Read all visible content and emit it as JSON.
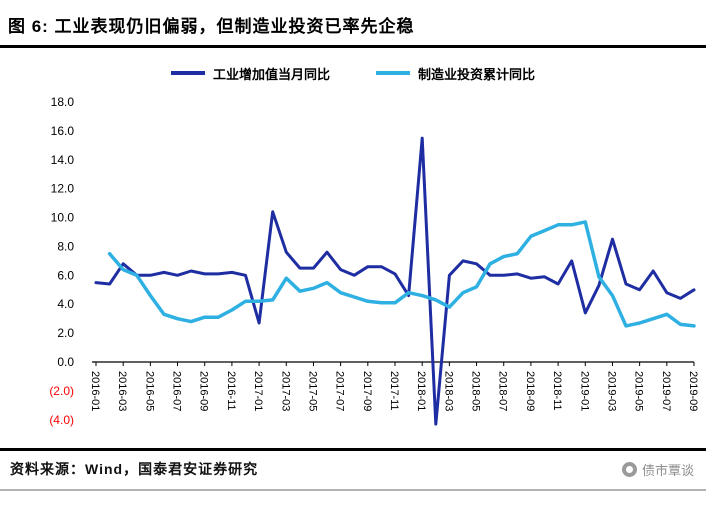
{
  "header": {
    "title": "图 6:  工业表现仍旧偏弱，但制造业投资已率先企稳"
  },
  "footer": {
    "source": "资料来源：Wind，国泰君安证券研究",
    "wechat": "债市覃谈"
  },
  "chart_data": {
    "type": "line",
    "title": "工业表现仍旧偏弱，但制造业投资已率先企稳",
    "xlabel": "",
    "ylabel": "",
    "grid": false,
    "legend_position": "top",
    "ylim": [
      -4.5,
      18
    ],
    "negative_label_color": "#FF0000",
    "categories": [
      "2016-01",
      "2016-02",
      "2016-03",
      "2016-04",
      "2016-05",
      "2016-06",
      "2016-07",
      "2016-08",
      "2016-09",
      "2016-10",
      "2016-11",
      "2016-12",
      "2017-01",
      "2017-02",
      "2017-03",
      "2017-04",
      "2017-05",
      "2017-06",
      "2017-07",
      "2017-08",
      "2017-09",
      "2017-10",
      "2017-11",
      "2017-12",
      "2018-01",
      "2018-02",
      "2018-03",
      "2018-04",
      "2018-05",
      "2018-06",
      "2018-07",
      "2018-08",
      "2018-09",
      "2018-10",
      "2018-11",
      "2018-12",
      "2019-01",
      "2019-02",
      "2019-03",
      "2019-04",
      "2019-05",
      "2019-06",
      "2019-07",
      "2019-08",
      "2019-09"
    ],
    "x_tick_labels": [
      "2016-01",
      "2016-03",
      "2016-05",
      "2016-07",
      "2016-09",
      "2016-11",
      "2017-01",
      "2017-03",
      "2017-05",
      "2017-07",
      "2017-09",
      "2017-11",
      "2018-01",
      "2018-03",
      "2018-05",
      "2018-07",
      "2018-09",
      "2018-11",
      "2019-01",
      "2019-03",
      "2019-05",
      "2019-07",
      "2019-09"
    ],
    "y_ticks": [
      {
        "label": "18.0",
        "value": 18,
        "negative": false
      },
      {
        "label": "16.0",
        "value": 16,
        "negative": false
      },
      {
        "label": "14.0",
        "value": 14,
        "negative": false
      },
      {
        "label": "12.0",
        "value": 12,
        "negative": false
      },
      {
        "label": "10.0",
        "value": 10,
        "negative": false
      },
      {
        "label": "8.0",
        "value": 8,
        "negative": false
      },
      {
        "label": "6.0",
        "value": 6,
        "negative": false
      },
      {
        "label": "4.0",
        "value": 4,
        "negative": false
      },
      {
        "label": "2.0",
        "value": 2,
        "negative": false
      },
      {
        "label": "0.0",
        "value": 0,
        "negative": false
      },
      {
        "label": "(2.0)",
        "value": -2,
        "negative": true
      },
      {
        "label": "(4.0)",
        "value": -4,
        "negative": true
      }
    ],
    "series": [
      {
        "name": "工业增加值当月同比",
        "color": "#1F2DA3",
        "width": 3,
        "values": [
          5.5,
          5.4,
          6.8,
          6.0,
          6.0,
          6.2,
          6.0,
          6.3,
          6.1,
          6.1,
          6.2,
          6.0,
          2.7,
          10.4,
          7.6,
          6.5,
          6.5,
          7.6,
          6.4,
          6.0,
          6.6,
          6.6,
          6.1,
          4.6,
          15.5,
          -4.3,
          6.0,
          7.0,
          6.8,
          6.0,
          6.0,
          6.1,
          5.8,
          5.9,
          5.4,
          7.0,
          3.4,
          5.3,
          8.5,
          5.4,
          5.0,
          6.3,
          4.8,
          4.4,
          5.0
        ]
      },
      {
        "name": "制造业投资累计同比",
        "color": "#2FB0E2",
        "width": 3.5,
        "values": [
          null,
          7.5,
          6.4,
          6.0,
          4.6,
          3.3,
          3.0,
          2.8,
          3.1,
          3.1,
          3.6,
          4.2,
          4.2,
          4.3,
          5.8,
          4.9,
          5.1,
          5.5,
          4.8,
          4.5,
          4.2,
          4.1,
          4.1,
          4.8,
          4.6,
          4.3,
          3.8,
          4.8,
          5.2,
          6.8,
          7.3,
          7.5,
          8.7,
          9.1,
          9.5,
          9.5,
          9.7,
          5.9,
          4.6,
          2.5,
          2.7,
          3.0,
          3.3,
          2.6,
          2.5
        ]
      }
    ]
  }
}
